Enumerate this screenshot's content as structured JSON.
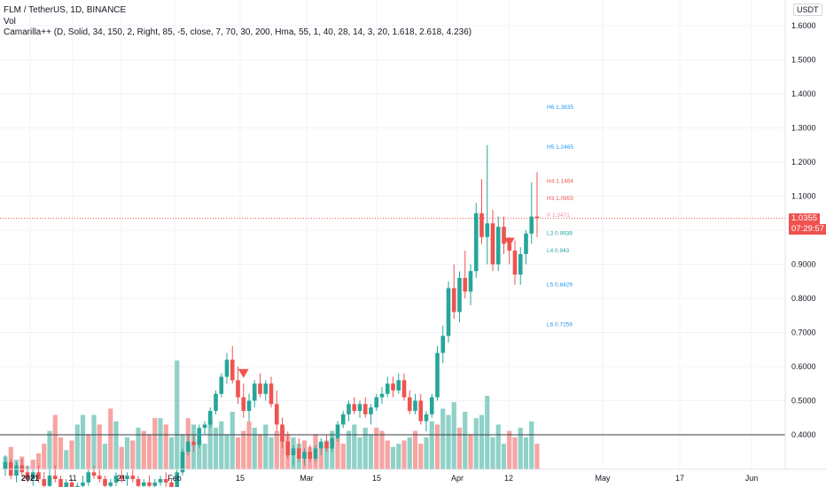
{
  "header": {
    "symbol_line": "FLM / TetherUS, 1D, BINANCE",
    "volume_label": "Vol",
    "indicator_line": "Camarilla++ (D, Solid, 34, 150, 2, Right, 85, -5, close, 7, 70, 30, 200, Hma, 55, 1, 40, 28, 14, 3, 20, 1.618, 2.618, 4.236)"
  },
  "price_scale": {
    "currency": "USDT",
    "ticks": [
      "1.6000",
      "1.5000",
      "1.4000",
      "1.3000",
      "1.2000",
      "1.1000",
      "1.0000",
      "0.9000",
      "0.8000",
      "0.7000",
      "0.6000",
      "0.5000",
      "0.4000"
    ],
    "current_price": "1.0355",
    "countdown": "07:29:57"
  },
  "time_scale": {
    "ticks": [
      "2021",
      "11",
      "21",
      "Feb",
      "15",
      "Mar",
      "15",
      "Apr",
      "12",
      "May",
      "17",
      "Jun"
    ]
  },
  "colors": {
    "up": "#26a69a",
    "down": "#ef5350",
    "vol_up": "#8fd1c7",
    "vol_down": "#f6a5a3",
    "pivot_blue": "#2196f3",
    "pivot_red": "#ef5350",
    "pivot_green": "#26a69a",
    "pivot_pink": "#f48fb1",
    "badge": "#ef5350"
  },
  "chart_data": {
    "type": "candlestick",
    "x_start": "2021-01-01",
    "interval": "1D",
    "candles": [
      [
        0.3,
        0.34,
        0.28,
        0.32
      ],
      [
        0.32,
        0.33,
        0.27,
        0.28
      ],
      [
        0.28,
        0.32,
        0.26,
        0.31
      ],
      [
        0.31,
        0.33,
        0.28,
        0.29
      ],
      [
        0.29,
        0.31,
        0.26,
        0.27
      ],
      [
        0.27,
        0.3,
        0.25,
        0.29
      ],
      [
        0.29,
        0.31,
        0.26,
        0.27
      ],
      [
        0.27,
        0.29,
        0.24,
        0.25
      ],
      [
        0.25,
        0.3,
        0.24,
        0.28
      ],
      [
        0.28,
        0.31,
        0.26,
        0.27
      ],
      [
        0.27,
        0.28,
        0.22,
        0.24
      ],
      [
        0.24,
        0.27,
        0.21,
        0.26
      ],
      [
        0.26,
        0.27,
        0.23,
        0.24
      ],
      [
        0.24,
        0.26,
        0.22,
        0.25
      ],
      [
        0.25,
        0.28,
        0.23,
        0.26
      ],
      [
        0.26,
        0.3,
        0.25,
        0.29
      ],
      [
        0.29,
        0.31,
        0.27,
        0.28
      ],
      [
        0.28,
        0.3,
        0.26,
        0.27
      ],
      [
        0.27,
        0.28,
        0.24,
        0.25
      ],
      [
        0.25,
        0.27,
        0.23,
        0.26
      ],
      [
        0.26,
        0.29,
        0.25,
        0.28
      ],
      [
        0.28,
        0.3,
        0.26,
        0.27
      ],
      [
        0.27,
        0.29,
        0.25,
        0.28
      ],
      [
        0.28,
        0.3,
        0.26,
        0.27
      ],
      [
        0.27,
        0.28,
        0.24,
        0.25
      ],
      [
        0.25,
        0.27,
        0.23,
        0.26
      ],
      [
        0.26,
        0.28,
        0.24,
        0.25
      ],
      [
        0.25,
        0.27,
        0.23,
        0.26
      ],
      [
        0.26,
        0.28,
        0.25,
        0.27
      ],
      [
        0.27,
        0.29,
        0.24,
        0.26
      ],
      [
        0.26,
        0.27,
        0.22,
        0.23
      ],
      [
        0.23,
        0.3,
        0.22,
        0.29
      ],
      [
        0.29,
        0.36,
        0.28,
        0.35
      ],
      [
        0.35,
        0.4,
        0.34,
        0.38
      ],
      [
        0.38,
        0.4,
        0.35,
        0.37
      ],
      [
        0.37,
        0.43,
        0.36,
        0.42
      ],
      [
        0.42,
        0.44,
        0.4,
        0.43
      ],
      [
        0.43,
        0.48,
        0.42,
        0.47
      ],
      [
        0.47,
        0.53,
        0.46,
        0.52
      ],
      [
        0.52,
        0.58,
        0.51,
        0.57
      ],
      [
        0.57,
        0.64,
        0.55,
        0.62
      ],
      [
        0.62,
        0.66,
        0.55,
        0.56
      ],
      [
        0.56,
        0.6,
        0.49,
        0.51
      ],
      [
        0.51,
        0.55,
        0.45,
        0.47
      ],
      [
        0.47,
        0.52,
        0.44,
        0.5
      ],
      [
        0.5,
        0.56,
        0.48,
        0.55
      ],
      [
        0.55,
        0.58,
        0.51,
        0.52
      ],
      [
        0.52,
        0.56,
        0.5,
        0.55
      ],
      [
        0.55,
        0.57,
        0.48,
        0.49
      ],
      [
        0.49,
        0.53,
        0.41,
        0.43
      ],
      [
        0.43,
        0.45,
        0.36,
        0.38
      ],
      [
        0.38,
        0.41,
        0.33,
        0.34
      ],
      [
        0.34,
        0.37,
        0.31,
        0.36
      ],
      [
        0.36,
        0.39,
        0.32,
        0.33
      ],
      [
        0.33,
        0.36,
        0.31,
        0.35
      ],
      [
        0.35,
        0.37,
        0.32,
        0.33
      ],
      [
        0.33,
        0.37,
        0.32,
        0.36
      ],
      [
        0.36,
        0.39,
        0.34,
        0.38
      ],
      [
        0.38,
        0.4,
        0.35,
        0.36
      ],
      [
        0.36,
        0.4,
        0.35,
        0.39
      ],
      [
        0.39,
        0.44,
        0.38,
        0.43
      ],
      [
        0.43,
        0.47,
        0.42,
        0.46
      ],
      [
        0.46,
        0.5,
        0.44,
        0.49
      ],
      [
        0.49,
        0.51,
        0.46,
        0.47
      ],
      [
        0.47,
        0.5,
        0.45,
        0.49
      ],
      [
        0.49,
        0.51,
        0.45,
        0.46
      ],
      [
        0.46,
        0.49,
        0.43,
        0.48
      ],
      [
        0.48,
        0.52,
        0.47,
        0.51
      ],
      [
        0.51,
        0.54,
        0.49,
        0.52
      ],
      [
        0.52,
        0.57,
        0.51,
        0.55
      ],
      [
        0.55,
        0.57,
        0.51,
        0.53
      ],
      [
        0.53,
        0.58,
        0.52,
        0.56
      ],
      [
        0.56,
        0.58,
        0.5,
        0.51
      ],
      [
        0.51,
        0.53,
        0.46,
        0.47
      ],
      [
        0.47,
        0.52,
        0.46,
        0.5
      ],
      [
        0.5,
        0.52,
        0.43,
        0.44
      ],
      [
        0.44,
        0.47,
        0.41,
        0.46
      ],
      [
        0.46,
        0.52,
        0.45,
        0.51
      ],
      [
        0.51,
        0.66,
        0.5,
        0.64
      ],
      [
        0.64,
        0.72,
        0.61,
        0.69
      ],
      [
        0.69,
        0.85,
        0.67,
        0.83
      ],
      [
        0.83,
        0.9,
        0.74,
        0.76
      ],
      [
        0.76,
        0.88,
        0.73,
        0.86
      ],
      [
        0.86,
        0.94,
        0.8,
        0.82
      ],
      [
        0.82,
        0.9,
        0.78,
        0.88
      ],
      [
        0.88,
        1.08,
        0.86,
        1.05
      ],
      [
        1.05,
        1.15,
        0.96,
        0.98
      ],
      [
        0.98,
        1.25,
        0.9,
        1.02
      ],
      [
        1.02,
        1.06,
        0.88,
        0.9
      ],
      [
        0.9,
        1.04,
        0.88,
        1.01
      ],
      [
        1.01,
        1.04,
        0.93,
        0.96
      ],
      [
        0.96,
        0.98,
        0.9,
        0.94
      ],
      [
        0.94,
        0.97,
        0.84,
        0.87
      ],
      [
        0.87,
        0.95,
        0.84,
        0.93
      ],
      [
        0.93,
        1.0,
        0.9,
        0.99
      ],
      [
        0.99,
        1.14,
        0.96,
        1.04
      ],
      [
        1.04,
        1.17,
        0.98,
        1.0355
      ]
    ],
    "volumes": [
      [
        0.34,
        1
      ],
      [
        0.37,
        0
      ],
      [
        0.33,
        1
      ],
      [
        0.34,
        0
      ],
      [
        0.31,
        1
      ],
      [
        0.33,
        0
      ],
      [
        0.35,
        0
      ],
      [
        0.38,
        0
      ],
      [
        0.42,
        1
      ],
      [
        0.47,
        0
      ],
      [
        0.4,
        0
      ],
      [
        0.36,
        1
      ],
      [
        0.39,
        0
      ],
      [
        0.44,
        1
      ],
      [
        0.47,
        1
      ],
      [
        0.41,
        0
      ],
      [
        0.47,
        1
      ],
      [
        0.44,
        0
      ],
      [
        0.38,
        1
      ],
      [
        0.49,
        0
      ],
      [
        0.45,
        1
      ],
      [
        0.37,
        0
      ],
      [
        0.4,
        1
      ],
      [
        0.39,
        0
      ],
      [
        0.43,
        1
      ],
      [
        0.42,
        0
      ],
      [
        0.41,
        0
      ],
      [
        0.46,
        0
      ],
      [
        0.46,
        1
      ],
      [
        0.44,
        0
      ],
      [
        0.4,
        1
      ],
      [
        0.64,
        1
      ],
      [
        0.41,
        1
      ],
      [
        0.46,
        0
      ],
      [
        0.44,
        1
      ],
      [
        0.39,
        1
      ],
      [
        0.38,
        1
      ],
      [
        0.45,
        1
      ],
      [
        0.43,
        1
      ],
      [
        0.45,
        1
      ],
      [
        0.41,
        1
      ],
      [
        0.48,
        1
      ],
      [
        0.4,
        0
      ],
      [
        0.42,
        0
      ],
      [
        0.45,
        0
      ],
      [
        0.43,
        1
      ],
      [
        0.41,
        0
      ],
      [
        0.44,
        1
      ],
      [
        0.4,
        1
      ],
      [
        0.42,
        0
      ],
      [
        0.43,
        0
      ],
      [
        0.41,
        0
      ],
      [
        0.4,
        1
      ],
      [
        0.38,
        1
      ],
      [
        0.39,
        0
      ],
      [
        0.37,
        0
      ],
      [
        0.41,
        0
      ],
      [
        0.38,
        0
      ],
      [
        0.39,
        1
      ],
      [
        0.42,
        1
      ],
      [
        0.4,
        0
      ],
      [
        0.38,
        0
      ],
      [
        0.42,
        1
      ],
      [
        0.44,
        1
      ],
      [
        0.4,
        1
      ],
      [
        0.43,
        1
      ],
      [
        0.41,
        1
      ],
      [
        0.43,
        0
      ],
      [
        0.42,
        0
      ],
      [
        0.39,
        0
      ],
      [
        0.37,
        1
      ],
      [
        0.38,
        1
      ],
      [
        0.39,
        0
      ],
      [
        0.4,
        1
      ],
      [
        0.42,
        0
      ],
      [
        0.38,
        0
      ],
      [
        0.4,
        1
      ],
      [
        0.45,
        1
      ],
      [
        0.44,
        0
      ],
      [
        0.49,
        1
      ],
      [
        0.47,
        1
      ],
      [
        0.51,
        1
      ],
      [
        0.43,
        0
      ],
      [
        0.48,
        1
      ],
      [
        0.41,
        0
      ],
      [
        0.46,
        1
      ],
      [
        0.47,
        1
      ],
      [
        0.53,
        1
      ],
      [
        0.4,
        1
      ],
      [
        0.44,
        1
      ],
      [
        0.38,
        1
      ],
      [
        0.42,
        0
      ],
      [
        0.4,
        0
      ],
      [
        0.43,
        1
      ],
      [
        0.4,
        1
      ],
      [
        0.45,
        1
      ],
      [
        0.38,
        0
      ]
    ],
    "volume_axis_max": 0.66,
    "signals": [
      {
        "candle": 43,
        "price": 0.58,
        "marker": "down-triangle"
      },
      {
        "candle": 91,
        "price": 0.965,
        "marker": "down-triangle"
      }
    ],
    "pivot_levels": [
      {
        "label": "H6",
        "value": 1.3635,
        "color": "#2196f3"
      },
      {
        "label": "H5",
        "value": 1.2465,
        "color": "#2196f3"
      },
      {
        "label": "H4",
        "value": 1.1464,
        "color": "#ef5350"
      },
      {
        "label": "H3",
        "value": 1.0955,
        "color": "#ef5350"
      },
      {
        "label": "P",
        "value": 1.0471,
        "color": "#f48fb1"
      },
      {
        "label": "L3",
        "value": 0.9939,
        "color": "#26a69a"
      },
      {
        "label": "L4",
        "value": 0.943,
        "color": "#26a69a"
      },
      {
        "label": "L5",
        "value": 0.8429,
        "color": "#2196f3"
      },
      {
        "label": "L6",
        "value": 0.7259,
        "color": "#2196f3"
      }
    ],
    "horizontal_line": 0.4,
    "current_price": 1.0355,
    "y_range": [
      0.3,
      1.65
    ],
    "grid": true
  }
}
